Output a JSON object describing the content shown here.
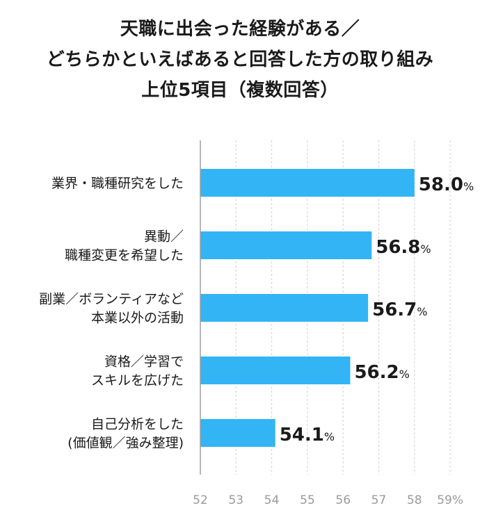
{
  "chart_data": {
    "type": "bar",
    "orientation": "horizontal",
    "title_lines": [
      "天職に出会った経験がある／",
      "どちらかといえばあると回答した方の取り組み",
      "上位5項目（複数回答）"
    ],
    "categories": [
      [
        "業界・職種研究をした"
      ],
      [
        "異動／",
        "職種変更を希望した"
      ],
      [
        "副業／ボランティアなど",
        "本業以外の活動"
      ],
      [
        "資格／学習で",
        "スキルを広げた"
      ],
      [
        "自己分析をした",
        "(価値観／強み整理)"
      ]
    ],
    "values": [
      58.0,
      56.8,
      56.7,
      56.2,
      54.1
    ],
    "value_labels": [
      "58.0",
      "56.8",
      "56.7",
      "56.2",
      "54.1"
    ],
    "value_unit": "%",
    "xlim": [
      52,
      59
    ],
    "x_ticks": [
      "52",
      "53",
      "54",
      "55",
      "56",
      "57",
      "58",
      "59%"
    ],
    "grid": true,
    "bar_color": "#33b4f5"
  }
}
